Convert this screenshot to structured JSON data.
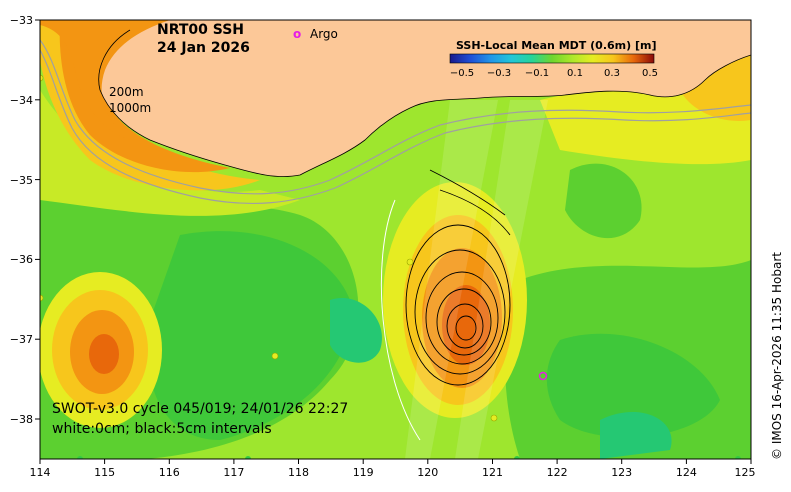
{
  "title": {
    "line1": "NRT00 SSH",
    "line2": "24 Jan 2026"
  },
  "legend": {
    "argo_marker": "o",
    "argo_label": "Argo",
    "argo_color": "#e61ee6"
  },
  "colorbar": {
    "title": "SSH-Local Mean MDT (0.6m) [m]",
    "ticks": [
      "−0.5",
      "−0.3",
      "−0.1",
      "0.1",
      "0.3",
      "0.5"
    ],
    "colors": [
      "#1a1a8c",
      "#1f4fd6",
      "#2196e8",
      "#22c6d8",
      "#25d49a",
      "#35c845",
      "#6fd62e",
      "#aee82a",
      "#e6ec22",
      "#f7c61c",
      "#f39512",
      "#e8680b",
      "#c83406",
      "#8b0a0a"
    ]
  },
  "isobaths": {
    "label1": "200m",
    "label2": "1000m"
  },
  "notes": {
    "line1": "SWOT-v3.0 cycle 045/019; 24/01/26 22:27",
    "line2": "white:0cm; black:5cm intervals"
  },
  "credit": "© IMOS 16-Apr-2026 11:35 Hobart",
  "axes": {
    "x_ticks": [
      "114",
      "115",
      "116",
      "117",
      "118",
      "119",
      "120",
      "121",
      "122",
      "123",
      "124",
      "125"
    ],
    "y_ticks": [
      "−33",
      "−34",
      "−35",
      "−36",
      "−37",
      "−38"
    ]
  },
  "colors": {
    "land": "#fcc898",
    "sea_base": "#9ee62e",
    "high": "#f39512",
    "mid_high": "#f7c61c",
    "low": "#35c845",
    "lower": "#25c873",
    "contour_black": "#000000",
    "isobath": "#a0a0a0"
  }
}
